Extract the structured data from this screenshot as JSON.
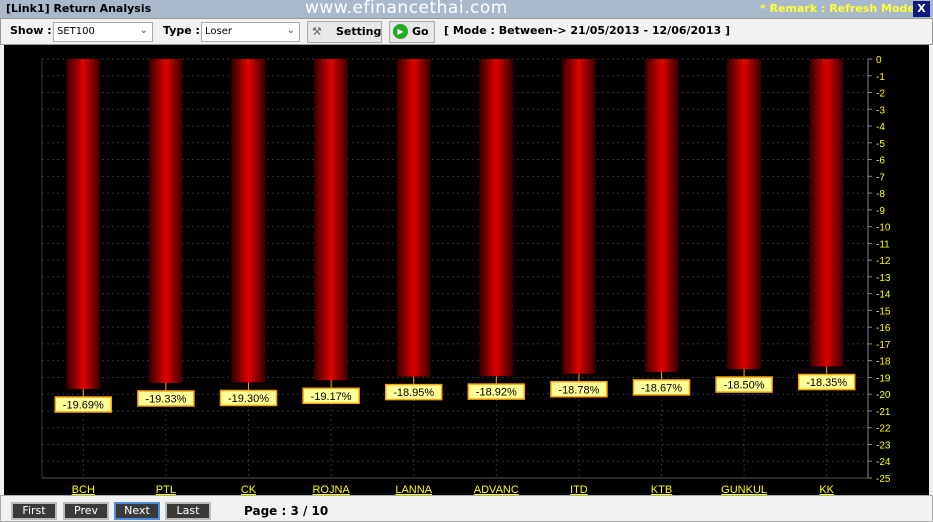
{
  "window": {
    "title": "[Link1] Return Analysis",
    "watermark": "www.efinancethai.com",
    "remark": "* Remark : Refresh Mode",
    "close": "X"
  },
  "toolbar": {
    "show_label": "Show :",
    "show_value": "SET100",
    "type_label": "Type :",
    "type_value": "Loser",
    "setting": "Setting",
    "go": "Go",
    "mode": "[ Mode : Between-> 21/05/2013 - 12/06/2013 ]"
  },
  "colors": {
    "bar": "#e00000",
    "label_bg": "#ffff99",
    "label_border": "#ffa500",
    "axis_text": "#ffff00",
    "background": "#000000"
  },
  "chart_data": {
    "type": "bar",
    "categories": [
      "BCH",
      "PTL",
      "CK",
      "ROJNA",
      "LANNA",
      "ADVANC",
      "ITD",
      "KTB",
      "GUNKUL",
      "KK"
    ],
    "values": [
      -19.69,
      -19.33,
      -19.3,
      -19.17,
      -18.95,
      -18.92,
      -18.78,
      -18.67,
      -18.5,
      -18.35
    ],
    "labels": [
      "-19.69%",
      "-19.33%",
      "-19.30%",
      "-19.17%",
      "-18.95%",
      "-18.92%",
      "-18.78%",
      "-18.67%",
      "-18.50%",
      "-18.35%"
    ],
    "ylim": [
      -25,
      0
    ],
    "yticks": [
      0,
      -1,
      -2,
      -3,
      -4,
      -5,
      -6,
      -7,
      -8,
      -9,
      -10,
      -11,
      -12,
      -13,
      -14,
      -15,
      -16,
      -17,
      -18,
      -19,
      -20,
      -21,
      -22,
      -23,
      -24,
      -25
    ],
    "yaxis": "right",
    "grid": true
  },
  "footer": {
    "first": "First",
    "prev": "Prev",
    "next": "Next",
    "last": "Last",
    "page": "Page : 3 / 10"
  }
}
